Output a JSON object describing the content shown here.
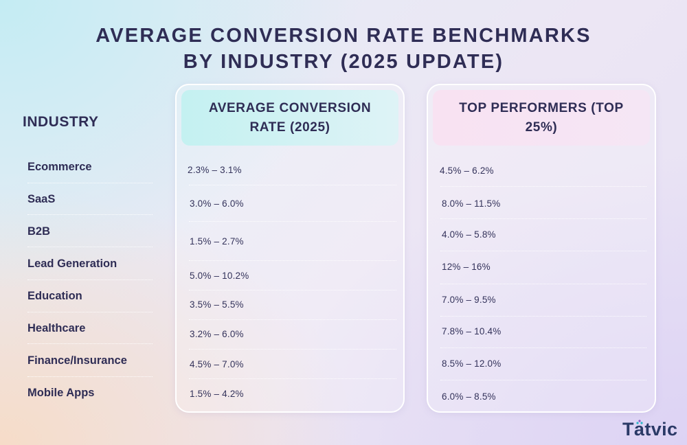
{
  "title": {
    "line1": "AVERAGE CONVERSION RATE BENCHMARKS",
    "line2": "BY INDUSTRY (2025 UPDATE)"
  },
  "industry_header": "INDUSTRY",
  "column_headers": {
    "average": "AVERAGE CONVERSION RATE (2025)",
    "top": "TOP PERFORMERS (TOP 25%)"
  },
  "logo": {
    "pre": "T",
    "a": "a",
    "post": "tvic"
  },
  "chart_data": {
    "type": "table",
    "title": "AVERAGE CONVERSION RATE BENCHMARKS BY INDUSTRY (2025 UPDATE)",
    "columns": [
      "INDUSTRY",
      "AVERAGE CONVERSION RATE (2025)",
      "TOP PERFORMERS (TOP 25%)"
    ],
    "rows": [
      {
        "industry": "Ecommerce",
        "average": "2.3% – 3.1%",
        "top": "4.5% – 6.2%"
      },
      {
        "industry": "SaaS",
        "average": "3.0% – 6.0%",
        "top": "8.0% – 11.5%"
      },
      {
        "industry": "B2B",
        "average": "1.5% – 2.7%",
        "top": "4.0% – 5.8%"
      },
      {
        "industry": "Lead Generation",
        "average": "5.0% – 10.2%",
        "top": "12% – 16%"
      },
      {
        "industry": "Education",
        "average": "3.5% – 5.5%",
        "top": "7.0% – 9.5%"
      },
      {
        "industry": "Healthcare",
        "average": "3.2% – 6.0%",
        "top": "7.8% – 10.4%"
      },
      {
        "industry": "Finance/Insurance",
        "average": "4.5% – 7.0%",
        "top": "8.5% – 12.0%"
      },
      {
        "industry": "Mobile Apps",
        "average": "1.5% – 4.2%",
        "top": "6.0% – 8.5%"
      }
    ]
  }
}
